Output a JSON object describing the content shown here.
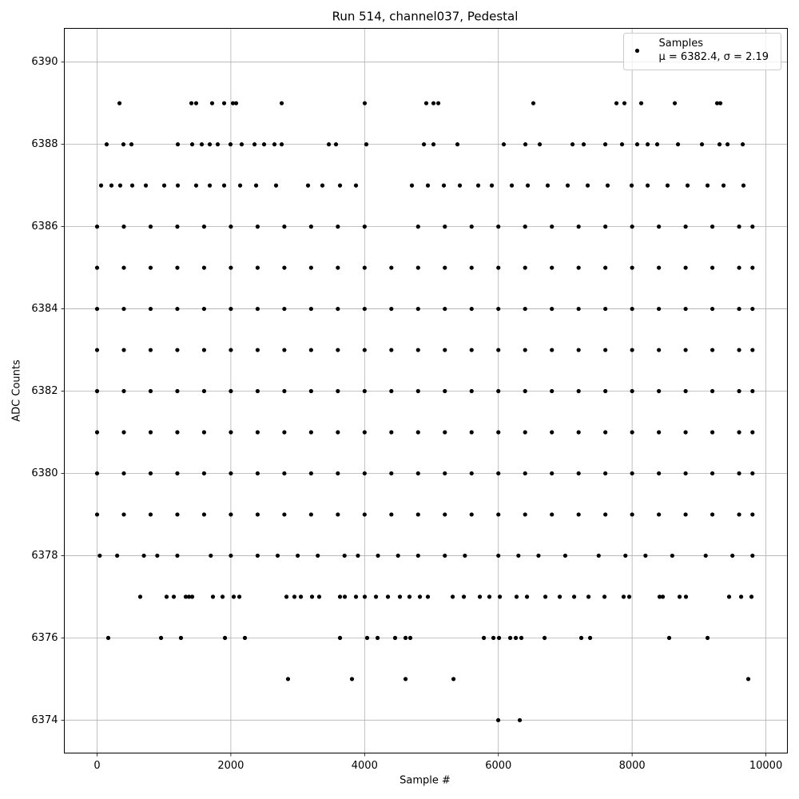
{
  "chart_data": {
    "type": "scatter",
    "title": "Run 514, channel037, Pedestal",
    "x_label": "Sample #",
    "y_label": "ADC Counts",
    "xlim": [
      -490,
      10322
    ],
    "ylim": [
      6373.2,
      6390.82
    ],
    "xticks": [
      0,
      2000,
      4000,
      6000,
      8000,
      10000
    ],
    "yticks": [
      6374,
      6376,
      6378,
      6380,
      6382,
      6384,
      6386,
      6388,
      6390
    ],
    "grid": true,
    "legend_position": "upper right",
    "legend_note": "μ = 6382.4, σ = 2.19",
    "series": [
      {
        "name": "Samples",
        "color": "#000000",
        "x": [
          5998,
          6320,
          2855,
          3811,
          4612,
          5329,
          9737,
          167,
          956,
          1254,
          1912,
          2210,
          3632,
          4038,
          4194,
          4456,
          4612,
          4683,
          5783,
          5926,
          6010,
          6177,
          6261,
          6344,
          6691,
          7240,
          7372,
          8554,
          9128,
          645,
          1039,
          1147,
          1326,
          1374,
          1422,
          1732,
          1876,
          2043,
          2127,
          2832,
          2951,
          3047,
          3214,
          3321,
          3632,
          3704,
          3871,
          4002,
          4170,
          4349,
          4528,
          4671,
          4827,
          4946,
          5317,
          5484,
          5723,
          5866,
          6022,
          6272,
          6428,
          6703,
          6918,
          7133,
          7348,
          7587,
          7873,
          7957,
          8411,
          8459,
          8710,
          8805,
          9450,
          9630,
          9785,
          40,
          300,
          700,
          900,
          1200,
          1700,
          2000,
          2400,
          2700,
          3000,
          3300,
          3700,
          3900,
          4200,
          4500,
          4800,
          5200,
          5500,
          6000,
          6300,
          6600,
          7000,
          7500,
          7900,
          8200,
          8600,
          9100,
          9500,
          9800,
          0,
          400,
          800,
          1200,
          1600,
          2000,
          2400,
          2800,
          3200,
          3600,
          4000,
          4400,
          4800,
          5200,
          5600,
          6000,
          6400,
          6800,
          7200,
          7600,
          8000,
          8400,
          8800,
          9200,
          9600,
          9800,
          0,
          400,
          800,
          1200,
          1600,
          2000,
          2400,
          2800,
          3200,
          3600,
          4000,
          4400,
          4800,
          5200,
          5600,
          6000,
          6400,
          6800,
          7200,
          7600,
          8000,
          8400,
          8800,
          9200,
          9600,
          9800,
          0,
          400,
          800,
          1200,
          1600,
          2000,
          2400,
          2800,
          3200,
          3600,
          4000,
          4400,
          4800,
          5200,
          5600,
          6000,
          6400,
          6800,
          7200,
          7600,
          8000,
          8400,
          8800,
          9200,
          9600,
          9800,
          0,
          400,
          800,
          1200,
          1600,
          2000,
          2400,
          2800,
          3200,
          3600,
          4000,
          4400,
          4800,
          5200,
          5600,
          6000,
          6400,
          6800,
          7200,
          7600,
          8000,
          8400,
          8800,
          9200,
          9600,
          9800,
          0,
          400,
          800,
          1200,
          1600,
          2000,
          2400,
          2800,
          3200,
          3600,
          4000,
          4400,
          4800,
          5200,
          5600,
          6000,
          6400,
          6800,
          7200,
          7600,
          8000,
          8400,
          8800,
          9200,
          9600,
          9800,
          0,
          400,
          800,
          1200,
          1600,
          2000,
          2400,
          2800,
          3200,
          3600,
          4000,
          4400,
          4800,
          5200,
          5600,
          6000,
          6400,
          6800,
          7200,
          7600,
          8000,
          8400,
          8800,
          9200,
          9600,
          9800,
          0,
          400,
          800,
          1200,
          1600,
          2000,
          2400,
          2800,
          3200,
          3600,
          4000,
          4400,
          4800,
          5200,
          5600,
          6000,
          6400,
          6800,
          7200,
          7600,
          8000,
          8400,
          8800,
          9200,
          9600,
          9800,
          0,
          400,
          800,
          1200,
          1600,
          2000,
          2400,
          2800,
          3200,
          3600,
          4000,
          4800,
          5200,
          5600,
          6000,
          6400,
          6800,
          7200,
          7600,
          8000,
          8400,
          8800,
          9200,
          9600,
          9800,
          60,
          215,
          346,
          526,
          729,
          1004,
          1207,
          1481,
          1685,
          1900,
          2139,
          2378,
          2676,
          3154,
          3369,
          3632,
          3871,
          4707,
          4946,
          5185,
          5424,
          5699,
          5902,
          6201,
          6440,
          6738,
          7037,
          7336,
          7634,
          7993,
          8232,
          8530,
          8829,
          9128,
          9367,
          9665,
          143,
          394,
          514,
          1207,
          1422,
          1565,
          1685,
          1804,
          1995,
          2162,
          2354,
          2497,
          2652,
          2760,
          3465,
          3572,
          4026,
          4887,
          5030,
          5388,
          6081,
          6404,
          6619,
          7109,
          7276,
          7599,
          7849,
          8076,
          8232,
          8375,
          8686,
          9044,
          9307,
          9427,
          9654,
          335,
          1410,
          1481,
          1720,
          1900,
          2031,
          2079,
          2760,
          4002,
          4922,
          5030,
          5102,
          6523,
          7766,
          7885,
          8136,
          8638,
          9271,
          9319
        ],
        "values": [
          6374,
          6374,
          6375,
          6375,
          6375,
          6375,
          6375,
          6376,
          6376,
          6376,
          6376,
          6376,
          6376,
          6376,
          6376,
          6376,
          6376,
          6376,
          6376,
          6376,
          6376,
          6376,
          6376,
          6376,
          6376,
          6376,
          6376,
          6376,
          6376,
          6377,
          6377,
          6377,
          6377,
          6377,
          6377,
          6377,
          6377,
          6377,
          6377,
          6377,
          6377,
          6377,
          6377,
          6377,
          6377,
          6377,
          6377,
          6377,
          6377,
          6377,
          6377,
          6377,
          6377,
          6377,
          6377,
          6377,
          6377,
          6377,
          6377,
          6377,
          6377,
          6377,
          6377,
          6377,
          6377,
          6377,
          6377,
          6377,
          6377,
          6377,
          6377,
          6377,
          6377,
          6377,
          6377,
          6378,
          6378,
          6378,
          6378,
          6378,
          6378,
          6378,
          6378,
          6378,
          6378,
          6378,
          6378,
          6378,
          6378,
          6378,
          6378,
          6378,
          6378,
          6378,
          6378,
          6378,
          6378,
          6378,
          6378,
          6378,
          6378,
          6378,
          6378,
          6378,
          6379,
          6379,
          6379,
          6379,
          6379,
          6379,
          6379,
          6379,
          6379,
          6379,
          6379,
          6379,
          6379,
          6379,
          6379,
          6379,
          6379,
          6379,
          6379,
          6379,
          6379,
          6379,
          6379,
          6379,
          6379,
          6379,
          6380,
          6380,
          6380,
          6380,
          6380,
          6380,
          6380,
          6380,
          6380,
          6380,
          6380,
          6380,
          6380,
          6380,
          6380,
          6380,
          6380,
          6380,
          6380,
          6380,
          6380,
          6380,
          6380,
          6380,
          6380,
          6380,
          6381,
          6381,
          6381,
          6381,
          6381,
          6381,
          6381,
          6381,
          6381,
          6381,
          6381,
          6381,
          6381,
          6381,
          6381,
          6381,
          6381,
          6381,
          6381,
          6381,
          6381,
          6381,
          6381,
          6381,
          6381,
          6381,
          6382,
          6382,
          6382,
          6382,
          6382,
          6382,
          6382,
          6382,
          6382,
          6382,
          6382,
          6382,
          6382,
          6382,
          6382,
          6382,
          6382,
          6382,
          6382,
          6382,
          6382,
          6382,
          6382,
          6382,
          6382,
          6382,
          6383,
          6383,
          6383,
          6383,
          6383,
          6383,
          6383,
          6383,
          6383,
          6383,
          6383,
          6383,
          6383,
          6383,
          6383,
          6383,
          6383,
          6383,
          6383,
          6383,
          6383,
          6383,
          6383,
          6383,
          6383,
          6383,
          6384,
          6384,
          6384,
          6384,
          6384,
          6384,
          6384,
          6384,
          6384,
          6384,
          6384,
          6384,
          6384,
          6384,
          6384,
          6384,
          6384,
          6384,
          6384,
          6384,
          6384,
          6384,
          6384,
          6384,
          6384,
          6384,
          6385,
          6385,
          6385,
          6385,
          6385,
          6385,
          6385,
          6385,
          6385,
          6385,
          6385,
          6385,
          6385,
          6385,
          6385,
          6385,
          6385,
          6385,
          6385,
          6385,
          6385,
          6385,
          6385,
          6385,
          6385,
          6385,
          6386,
          6386,
          6386,
          6386,
          6386,
          6386,
          6386,
          6386,
          6386,
          6386,
          6386,
          6386,
          6386,
          6386,
          6386,
          6386,
          6386,
          6386,
          6386,
          6386,
          6386,
          6386,
          6386,
          6386,
          6386,
          6387,
          6387,
          6387,
          6387,
          6387,
          6387,
          6387,
          6387,
          6387,
          6387,
          6387,
          6387,
          6387,
          6387,
          6387,
          6387,
          6387,
          6387,
          6387,
          6387,
          6387,
          6387,
          6387,
          6387,
          6387,
          6387,
          6387,
          6387,
          6387,
          6387,
          6387,
          6387,
          6387,
          6387,
          6387,
          6387,
          6388,
          6388,
          6388,
          6388,
          6388,
          6388,
          6388,
          6388,
          6388,
          6388,
          6388,
          6388,
          6388,
          6388,
          6388,
          6388,
          6388,
          6388,
          6388,
          6388,
          6388,
          6388,
          6388,
          6388,
          6388,
          6388,
          6388,
          6388,
          6388,
          6388,
          6388,
          6388,
          6388,
          6388,
          6388,
          6389,
          6389,
          6389,
          6389,
          6389,
          6389,
          6389,
          6389,
          6389,
          6389,
          6389,
          6389,
          6389,
          6389,
          6389,
          6389,
          6389,
          6389,
          6389
        ]
      }
    ]
  }
}
